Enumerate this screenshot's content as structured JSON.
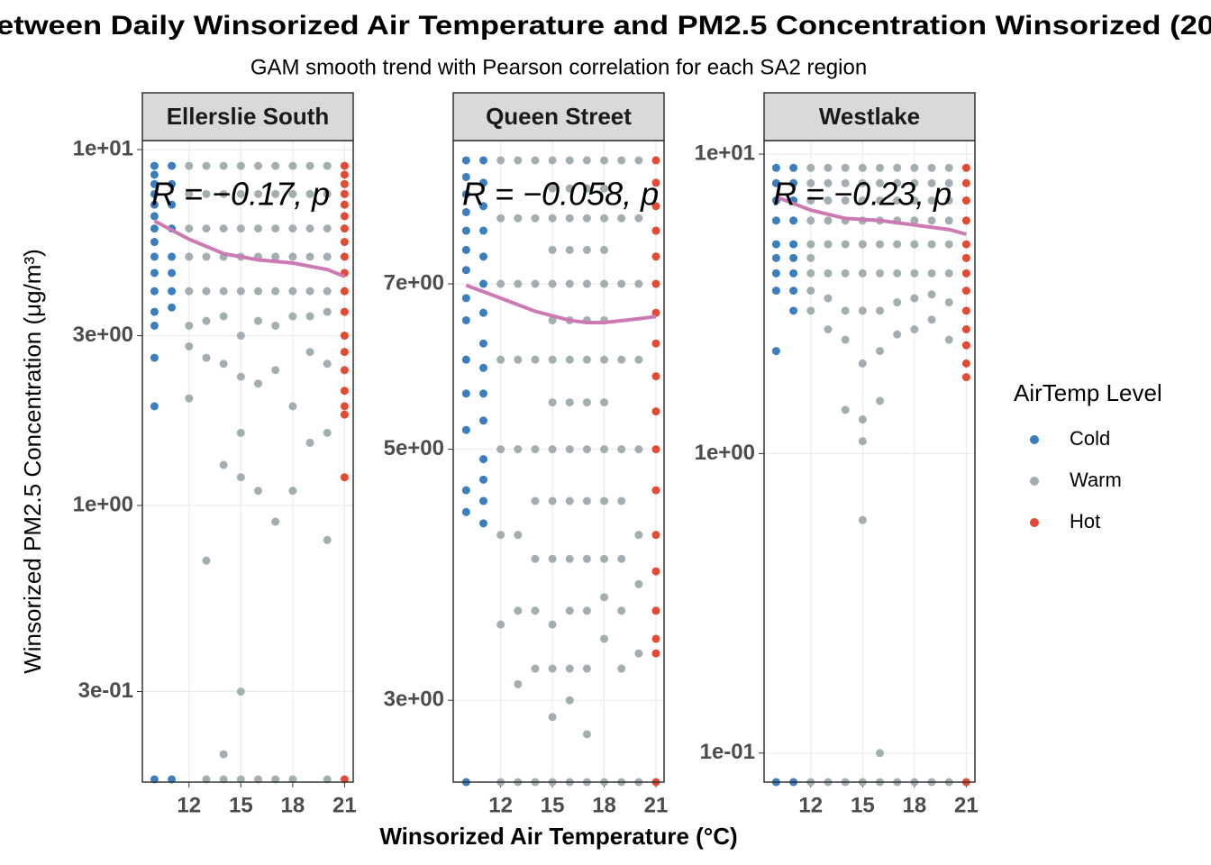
{
  "title": "etween Daily Winsorized Air Temperature and PM2.5 Concentration Winsorized (20",
  "subtitle": "GAM smooth trend with Pearson correlation for each SA2 region",
  "xlabel": "Winsorized Air Temperature (°C)",
  "ylabel": "Winsorized PM2.5 Concentration (μg/m³)",
  "legend": {
    "title": "AirTemp Level",
    "position": "right"
  },
  "chart_data": [
    {
      "type": "scatter",
      "title": "Ellerslie South",
      "annotation": "R = −0.17, p",
      "xlim": [
        9.3,
        21.5
      ],
      "xticks": [
        12,
        15,
        18,
        21
      ],
      "ylim": [
        0.167,
        10.6
      ],
      "log_y": true,
      "grid": true,
      "yticks": [
        {
          "value": 10,
          "label": "1e+01"
        },
        {
          "value": 3,
          "label": "3e+00"
        },
        {
          "value": 1,
          "label": "1e+00"
        },
        {
          "value": 0.3,
          "label": "3e-01"
        }
      ],
      "series": [
        {
          "name": "Cold",
          "color": "#3a7ebf",
          "x": [
            10,
            10,
            10,
            10,
            10,
            10,
            10,
            10,
            10,
            10,
            10,
            10,
            10,
            10,
            10,
            10,
            11,
            11,
            11,
            11,
            11,
            11,
            11,
            11,
            11
          ],
          "values": [
            9,
            8.5,
            8,
            7.5,
            7,
            6.5,
            6,
            5.5,
            5,
            4.5,
            4,
            3.5,
            3.2,
            2.6,
            1.9,
            0.17,
            9,
            8,
            7,
            6,
            5,
            4.5,
            4,
            3.6,
            0.17
          ]
        },
        {
          "name": "Warm",
          "color": "#a3aeb1",
          "x": [
            12,
            12,
            12,
            12,
            12,
            12,
            12,
            12,
            13,
            13,
            13,
            13,
            13,
            13,
            13,
            13,
            13,
            14,
            14,
            14,
            14,
            14,
            14,
            14,
            14,
            14,
            14,
            15,
            15,
            15,
            15,
            15,
            15,
            15,
            15,
            15,
            15,
            15,
            16,
            16,
            16,
            16,
            16,
            16,
            16,
            16,
            16,
            17,
            17,
            17,
            17,
            17,
            17,
            17,
            17,
            17,
            18,
            18,
            18,
            18,
            18,
            18,
            18,
            18,
            18,
            19,
            19,
            19,
            19,
            19,
            19,
            19,
            19,
            20,
            20,
            20,
            20,
            20,
            20,
            20,
            20,
            20,
            20
          ],
          "values": [
            9,
            7.5,
            6,
            5,
            4,
            3.2,
            2.8,
            2,
            9,
            7.5,
            6,
            5,
            4,
            3.3,
            2.6,
            0.7,
            0.17,
            9,
            7.5,
            6,
            5,
            4,
            3.4,
            2.5,
            1.3,
            0.2,
            0.17,
            9,
            7.5,
            6,
            5,
            4,
            3,
            2.3,
            1.6,
            1.2,
            0.3,
            0.17,
            9,
            7.5,
            6,
            5,
            4,
            3.3,
            2.2,
            1.1,
            0.17,
            9,
            7.5,
            6,
            5,
            4,
            3.2,
            2.4,
            0.9,
            0.17,
            9,
            7.5,
            6,
            5,
            4,
            3.4,
            1.9,
            1.1,
            0.17,
            9,
            7.5,
            6,
            5,
            4,
            3.4,
            2.7,
            1.5,
            9,
            7.5,
            6,
            5,
            4,
            3.5,
            2.5,
            1.6,
            0.8,
            0.17
          ]
        },
        {
          "name": "Hot",
          "color": "#e34a33",
          "x": [
            21,
            21,
            21,
            21,
            21,
            21,
            21,
            21,
            21,
            21,
            21,
            21,
            21,
            21,
            21,
            21,
            21,
            21,
            21,
            21
          ],
          "values": [
            9,
            8.5,
            8,
            7.5,
            7,
            6.5,
            6,
            5.5,
            5,
            4.5,
            4,
            3.5,
            3,
            2.7,
            2.4,
            2.1,
            1.9,
            1.8,
            1.2,
            0.17
          ]
        }
      ],
      "smooth": {
        "color": "#cc79b4",
        "x": [
          10,
          12,
          14,
          16,
          18,
          20,
          21
        ],
        "values": [
          6.3,
          5.6,
          5.1,
          4.9,
          4.8,
          4.6,
          4.4
        ]
      }
    },
    {
      "type": "scatter",
      "title": "Queen Street",
      "annotation": "R = −0.058, p",
      "xlim": [
        9.25,
        21.47
      ],
      "xticks": [
        12,
        15,
        18,
        21
      ],
      "ylim": [
        2.54,
        9.37
      ],
      "log_y": true,
      "grid": true,
      "yticks": [
        {
          "value": 7,
          "label": "7e+00"
        },
        {
          "value": 5,
          "label": "5e+00"
        },
        {
          "value": 3,
          "label": "3e+00"
        }
      ],
      "series": [
        {
          "name": "Cold",
          "color": "#3a7ebf",
          "x": [
            10,
            10,
            10,
            10,
            10,
            10,
            10,
            10,
            10,
            10,
            10,
            10,
            10,
            10,
            10,
            11,
            11,
            11,
            11,
            11,
            11,
            11,
            11,
            11,
            11,
            11,
            11,
            11,
            11,
            11
          ],
          "values": [
            9,
            8.7,
            8.4,
            8.1,
            7.8,
            7.5,
            7.2,
            6.8,
            6.5,
            6,
            5.6,
            5.2,
            4.6,
            4.4,
            2.54,
            9,
            8.6,
            8.2,
            7.8,
            7.4,
            7,
            6.6,
            6.2,
            5.9,
            5.6,
            5.3,
            4.9,
            4.7,
            4.5,
            4.3
          ]
        },
        {
          "name": "Warm",
          "color": "#a3aeb1",
          "x": [
            12,
            12,
            12,
            12,
            12,
            12,
            12,
            12,
            13,
            13,
            13,
            13,
            13,
            13,
            13,
            13,
            13,
            14,
            14,
            14,
            14,
            14,
            14,
            14,
            14,
            14,
            14,
            15,
            15,
            15,
            15,
            15,
            15,
            15,
            15,
            15,
            15,
            15,
            15,
            15,
            15,
            15,
            16,
            16,
            16,
            16,
            16,
            16,
            16,
            16,
            16,
            16,
            16,
            16,
            16,
            16,
            16,
            17,
            17,
            17,
            17,
            17,
            17,
            17,
            17,
            17,
            17,
            17,
            17,
            17,
            17,
            17,
            18,
            18,
            18,
            18,
            18,
            18,
            18,
            18,
            18,
            18,
            18,
            18,
            18,
            18,
            19,
            19,
            19,
            19,
            19,
            19,
            19,
            19,
            19,
            19,
            20,
            20,
            20,
            20,
            20,
            20,
            20,
            20,
            20
          ],
          "values": [
            9,
            8,
            7,
            6,
            5,
            4.2,
            3.5,
            2.54,
            9,
            8,
            7,
            6,
            5,
            4.2,
            3.6,
            3.1,
            2.54,
            9,
            8,
            7,
            6,
            5,
            4.5,
            4,
            3.6,
            3.2,
            2.54,
            9,
            8.5,
            8,
            7.5,
            7,
            6.5,
            6,
            5.5,
            5,
            4.5,
            4,
            3.5,
            3.2,
            2.9,
            2.54,
            9,
            8.5,
            8,
            7.5,
            7,
            6.5,
            6,
            5.5,
            5,
            4.5,
            4,
            3.6,
            3.2,
            3,
            2.54,
            9,
            8.5,
            8,
            7.5,
            7,
            6.5,
            6,
            5.5,
            5,
            4.5,
            4,
            3.6,
            3.2,
            2.8,
            2.54,
            9,
            8.5,
            8,
            7.5,
            7,
            6.5,
            6,
            5.5,
            5,
            4.5,
            4,
            3.7,
            3.4,
            2.54,
            9,
            8,
            7,
            6,
            5,
            4.5,
            4,
            3.6,
            3.2,
            2.54,
            9,
            8,
            7,
            6,
            5,
            4.2,
            3.8,
            3.3,
            2.54
          ]
        },
        {
          "name": "Hot",
          "color": "#e34a33",
          "x": [
            21,
            21,
            21,
            21,
            21,
            21,
            21,
            21,
            21,
            21,
            21,
            21,
            21,
            21,
            21,
            21,
            21,
            21
          ],
          "values": [
            9,
            8.6,
            8.2,
            7.8,
            7.4,
            7,
            6.6,
            6.2,
            5.8,
            5.4,
            5,
            4.6,
            4.2,
            3.9,
            3.6,
            3.4,
            3.3,
            2.54
          ]
        }
      ],
      "smooth": {
        "color": "#cc79b4",
        "x": [
          10,
          12,
          14,
          16,
          17,
          18,
          20,
          21
        ],
        "values": [
          6.98,
          6.8,
          6.62,
          6.5,
          6.47,
          6.47,
          6.52,
          6.55
        ]
      }
    },
    {
      "type": "scatter",
      "title": "Westlake",
      "annotation": "R = −0.23, p",
      "xlim": [
        9.3,
        21.5
      ],
      "xticks": [
        12,
        15,
        18,
        21
      ],
      "ylim": [
        0.08,
        11.1
      ],
      "log_y": true,
      "grid": true,
      "yticks": [
        {
          "value": 10,
          "label": "1e+01"
        },
        {
          "value": 1,
          "label": "1e+00"
        },
        {
          "value": 0.1,
          "label": "1e-01"
        }
      ],
      "series": [
        {
          "name": "Cold",
          "color": "#3a7ebf",
          "x": [
            10,
            10,
            10,
            10,
            10,
            10,
            10,
            10,
            10,
            10,
            11,
            11,
            11,
            11,
            11,
            11,
            11,
            11,
            11,
            11
          ],
          "values": [
            9,
            8,
            7,
            6,
            5,
            4.5,
            4,
            3.5,
            2.2,
            0.08,
            9,
            8,
            7,
            6,
            5,
            4.5,
            4,
            3.5,
            3,
            0.08
          ]
        },
        {
          "name": "Warm",
          "color": "#a3aeb1",
          "x": [
            12,
            12,
            12,
            12,
            12,
            12,
            12,
            12,
            12,
            12,
            13,
            13,
            13,
            13,
            13,
            13,
            13,
            13,
            13,
            14,
            14,
            14,
            14,
            14,
            14,
            14,
            14,
            14,
            14,
            15,
            15,
            15,
            15,
            15,
            15,
            15,
            15,
            15,
            15,
            15,
            15,
            16,
            16,
            16,
            16,
            16,
            16,
            16,
            16,
            16,
            16,
            16,
            17,
            17,
            17,
            17,
            17,
            17,
            17,
            17,
            17,
            18,
            18,
            18,
            18,
            18,
            18,
            18,
            18,
            18,
            19,
            19,
            19,
            19,
            19,
            19,
            19,
            19,
            19,
            20,
            20,
            20,
            20,
            20,
            20,
            20,
            20,
            20
          ],
          "values": [
            9,
            8,
            7,
            6,
            5,
            4.5,
            4,
            3.5,
            3,
            0.08,
            9,
            8,
            7,
            6,
            5,
            4,
            3.3,
            2.6,
            0.08,
            9,
            8,
            7,
            6,
            5,
            4,
            3,
            2.4,
            1.4,
            0.08,
            9,
            8,
            7,
            6,
            5,
            4,
            3,
            2,
            1.3,
            1.1,
            0.6,
            0.08,
            9,
            8,
            7,
            6,
            5,
            4,
            3,
            2.2,
            1.5,
            0.1,
            0.08,
            9,
            8,
            7,
            6,
            5,
            4,
            3.2,
            2.5,
            0.08,
            9,
            8,
            7,
            6,
            5,
            4,
            3.3,
            2.6,
            0.08,
            9,
            8,
            7,
            6,
            5,
            4,
            3.4,
            2.8,
            0.08,
            9,
            8,
            7,
            6,
            5,
            4,
            3.2,
            2.4,
            0.08
          ]
        },
        {
          "name": "Hot",
          "color": "#e34a33",
          "x": [
            21,
            21,
            21,
            21,
            21,
            21,
            21,
            21,
            21,
            21,
            21,
            21,
            21,
            21
          ],
          "values": [
            9,
            8,
            7,
            6,
            5,
            4.5,
            4,
            3.5,
            3,
            2.6,
            2.3,
            2,
            1.8,
            0.08
          ]
        }
      ],
      "smooth": {
        "color": "#cc79b4",
        "x": [
          10,
          12,
          14,
          16,
          18,
          20,
          21
        ],
        "values": [
          7.2,
          6.5,
          6.1,
          6.0,
          5.8,
          5.6,
          5.4
        ]
      }
    }
  ]
}
